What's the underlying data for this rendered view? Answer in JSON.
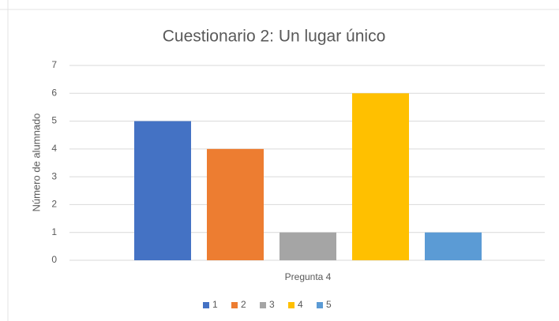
{
  "chart_data": {
    "type": "bar",
    "title": "Cuestionario 2: Un lugar único",
    "y_label": "Número de alumnado",
    "categories": [
      "Pregunta 4"
    ],
    "series": [
      {
        "name": "1",
        "color": "#4472c4",
        "values": [
          5
        ]
      },
      {
        "name": "2",
        "color": "#ed7d31",
        "values": [
          4
        ]
      },
      {
        "name": "3",
        "color": "#a5a5a5",
        "values": [
          1
        ]
      },
      {
        "name": "4",
        "color": "#ffc000",
        "values": [
          6
        ]
      },
      {
        "name": "5",
        "color": "#5b9bd5",
        "values": [
          1
        ]
      }
    ],
    "ylim": [
      0,
      7
    ],
    "yticks": [
      0,
      1,
      2,
      3,
      4,
      5,
      6,
      7
    ],
    "grid": true,
    "legend": "bottom"
  }
}
